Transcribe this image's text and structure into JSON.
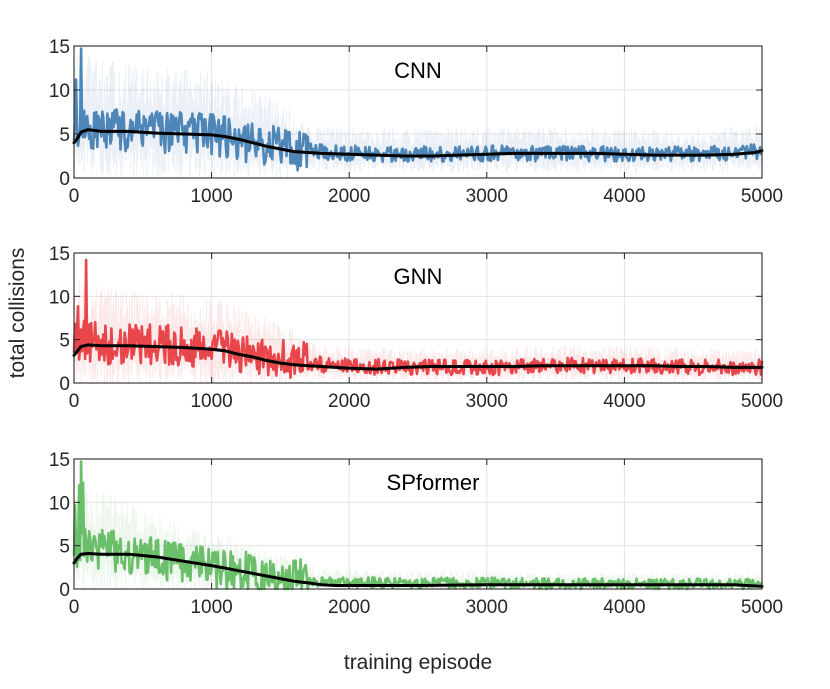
{
  "figure": {
    "ylabel": "total collisions",
    "xlabel": "training episode"
  },
  "chart_data": [
    {
      "type": "line",
      "title": "CNN",
      "color": "#4f86b8",
      "xlim": [
        0,
        5000
      ],
      "ylim": [
        0,
        15
      ],
      "xticks": [
        0,
        1000,
        2000,
        3000,
        4000,
        5000
      ],
      "yticks": [
        0,
        5,
        10,
        15
      ],
      "grid": true,
      "series": [
        {
          "name": "raw collisions",
          "color": "#4f86b8",
          "x": [
            0,
            250,
            500,
            750,
            1000,
            1250,
            1500,
            1750,
            2000,
            2500,
            3000,
            3500,
            4000,
            4500,
            5000
          ],
          "values": [
            6.0,
            5.5,
            5.3,
            5.2,
            5.0,
            4.2,
            3.5,
            3.0,
            2.8,
            2.7,
            2.8,
            2.8,
            2.7,
            2.7,
            3.0
          ]
        },
        {
          "name": "moving average",
          "color": "#000000",
          "x": [
            0,
            20,
            50,
            100,
            200,
            400,
            600,
            800,
            1000,
            1100,
            1200,
            1300,
            1400,
            1500,
            1600,
            1700,
            1800,
            2000,
            2200,
            2400,
            2600,
            2800,
            3000,
            3200,
            3400,
            3600,
            3800,
            4000,
            4200,
            4400,
            4600,
            4800,
            4950,
            5000
          ],
          "values": [
            4.0,
            4.4,
            5.2,
            5.5,
            5.3,
            5.3,
            5.1,
            5.0,
            4.9,
            4.7,
            4.4,
            4.0,
            3.6,
            3.3,
            3.0,
            2.9,
            2.8,
            2.7,
            2.6,
            2.5,
            2.5,
            2.6,
            2.7,
            2.8,
            2.8,
            2.8,
            2.8,
            2.7,
            2.6,
            2.6,
            2.6,
            2.7,
            2.9,
            3.1
          ]
        }
      ]
    },
    {
      "type": "line",
      "title": "GNN",
      "color": "#e8464b",
      "xlim": [
        0,
        5000
      ],
      "ylim": [
        0,
        15
      ],
      "xticks": [
        0,
        1000,
        2000,
        3000,
        4000,
        5000
      ],
      "yticks": [
        0,
        5,
        10,
        15
      ],
      "grid": true,
      "series": [
        {
          "name": "raw collisions",
          "color": "#e8464b",
          "x": [
            0,
            250,
            500,
            750,
            1000,
            1250,
            1500,
            1750,
            2000,
            2500,
            3000,
            3500,
            4000,
            4500,
            5000
          ],
          "values": [
            5.0,
            4.5,
            4.4,
            4.3,
            4.0,
            3.5,
            2.8,
            2.2,
            1.9,
            1.8,
            1.8,
            2.0,
            2.0,
            1.8,
            1.8
          ]
        },
        {
          "name": "moving average",
          "color": "#000000",
          "x": [
            0,
            20,
            50,
            100,
            200,
            400,
            600,
            800,
            1000,
            1100,
            1200,
            1300,
            1400,
            1500,
            1600,
            1700,
            1800,
            2000,
            2200,
            2400,
            2600,
            2800,
            3000,
            3200,
            3400,
            3600,
            3800,
            4000,
            4200,
            4400,
            4600,
            4800,
            5000
          ],
          "values": [
            3.2,
            3.6,
            4.2,
            4.4,
            4.3,
            4.3,
            4.2,
            4.1,
            3.9,
            3.7,
            3.3,
            3.0,
            2.6,
            2.3,
            2.1,
            2.0,
            1.9,
            1.7,
            1.6,
            1.8,
            1.9,
            1.9,
            1.9,
            1.9,
            2.0,
            2.0,
            2.0,
            2.0,
            2.0,
            1.9,
            1.9,
            1.8,
            1.8
          ]
        }
      ]
    },
    {
      "type": "line",
      "title": "SPformer",
      "color": "#6cbf6a",
      "xlim": [
        0,
        5000
      ],
      "ylim": [
        0,
        15
      ],
      "xticks": [
        0,
        1000,
        2000,
        3000,
        4000,
        5000
      ],
      "yticks": [
        0,
        5,
        10,
        15
      ],
      "grid": true,
      "series": [
        {
          "name": "raw collisions",
          "color": "#6cbf6a",
          "x": [
            0,
            250,
            500,
            750,
            1000,
            1250,
            1500,
            1750,
            2000,
            2500,
            3000,
            3500,
            4000,
            4500,
            5000
          ],
          "values": [
            5.0,
            4.5,
            3.8,
            3.0,
            2.5,
            2.0,
            1.4,
            0.9,
            0.8,
            0.7,
            0.7,
            0.6,
            0.6,
            0.6,
            0.5
          ]
        },
        {
          "name": "moving average",
          "color": "#000000",
          "x": [
            0,
            20,
            50,
            100,
            200,
            400,
            600,
            800,
            1000,
            1100,
            1200,
            1300,
            1400,
            1500,
            1600,
            1700,
            1800,
            1900,
            2000,
            2200,
            2500,
            3000,
            3500,
            4000,
            4500,
            4800,
            5000
          ],
          "values": [
            3.0,
            3.5,
            4.0,
            4.1,
            4.0,
            4.0,
            3.7,
            3.2,
            2.7,
            2.4,
            2.1,
            1.8,
            1.5,
            1.2,
            0.9,
            0.7,
            0.5,
            0.4,
            0.4,
            0.4,
            0.4,
            0.5,
            0.5,
            0.5,
            0.5,
            0.5,
            0.3
          ]
        }
      ]
    }
  ]
}
